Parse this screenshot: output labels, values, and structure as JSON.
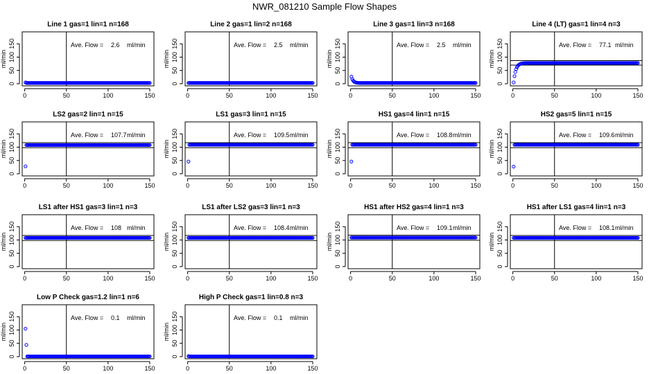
{
  "figure": {
    "title": "NWR_081210  Sample Flow Shapes"
  },
  "chart_data": [
    {
      "type": "scatter",
      "title": "Line 1 gas=1 lin=1 n=168",
      "annotation_label": "Ave. Flow =",
      "annotation_value": "2.6",
      "annotation_unit": "ml/min",
      "ylabel": "ml/min",
      "xlim": [
        -3,
        155
      ],
      "ylim": [
        -8,
        195
      ],
      "vline": 50,
      "hlines": [],
      "series": {
        "shape": "flat",
        "first": 5,
        "level": 3,
        "n": 150
      }
    },
    {
      "type": "scatter",
      "title": "Line 2 gas=1 lin=2 n=168",
      "annotation_label": "Ave. Flow =",
      "annotation_value": "2.5",
      "annotation_unit": "ml/min",
      "ylabel": "ml/min",
      "xlim": [
        -3,
        155
      ],
      "ylim": [
        -8,
        195
      ],
      "vline": 50,
      "hlines": [],
      "series": {
        "shape": "flat",
        "first": 3,
        "level": 3,
        "n": 150
      }
    },
    {
      "type": "scatter",
      "title": "Line 3 gas=1 lin=3 n=168",
      "annotation_label": "Ave. Flow =",
      "annotation_value": "2.5",
      "annotation_unit": "ml/min",
      "ylabel": "ml/min",
      "xlim": [
        -3,
        155
      ],
      "ylim": [
        -8,
        195
      ],
      "vline": 50,
      "hlines": [],
      "series": {
        "shape": "decay",
        "first": 27,
        "level": 3,
        "n": 150
      }
    },
    {
      "type": "scatter",
      "title": "Line 4 (LT) gas=1 lin=4 n=3",
      "annotation_label": "Ave. Flow =",
      "annotation_value": "77.1",
      "annotation_unit": "ml/min",
      "ylabel": "ml/min",
      "xlim": [
        -3,
        155
      ],
      "ylim": [
        -8,
        195
      ],
      "vline": 50,
      "hlines": [
        87,
        70
      ],
      "series": {
        "shape": "rise",
        "first": 5,
        "level": 78,
        "n": 150
      }
    },
    {
      "type": "scatter",
      "title": "LS2 gas=2 lin=1 n=15",
      "annotation_label": "Ave. Flow =",
      "annotation_value": "107.7",
      "annotation_unit": "ml/min",
      "ylabel": "ml/min",
      "xlim": [
        -3,
        155
      ],
      "ylim": [
        -8,
        195
      ],
      "vline": 50,
      "hlines": [
        117,
        98
      ],
      "series": {
        "shape": "flat",
        "first": 28,
        "level": 108,
        "n": 150
      }
    },
    {
      "type": "scatter",
      "title": "LS1 gas=3 lin=1 n=15",
      "annotation_label": "Ave. Flow =",
      "annotation_value": "109.5",
      "annotation_unit": "ml/min",
      "ylabel": "ml/min",
      "xlim": [
        -3,
        155
      ],
      "ylim": [
        -8,
        195
      ],
      "vline": 50,
      "hlines": [
        117,
        98
      ],
      "series": {
        "shape": "flat",
        "first": 46,
        "level": 109,
        "n": 150
      }
    },
    {
      "type": "scatter",
      "title": "HS1 gas=4 lin=1 n=15",
      "annotation_label": "Ave. Flow =",
      "annotation_value": "108.8",
      "annotation_unit": "ml/min",
      "ylabel": "ml/min",
      "xlim": [
        -3,
        155
      ],
      "ylim": [
        -8,
        195
      ],
      "vline": 50,
      "hlines": [
        117,
        98
      ],
      "series": {
        "shape": "flat",
        "first": 46,
        "level": 109,
        "n": 150
      }
    },
    {
      "type": "scatter",
      "title": "HS2 gas=5 lin=1 n=15",
      "annotation_label": "Ave. Flow =",
      "annotation_value": "109.6",
      "annotation_unit": "ml/min",
      "ylabel": "ml/min",
      "xlim": [
        -3,
        155
      ],
      "ylim": [
        -8,
        195
      ],
      "vline": 50,
      "hlines": [
        117,
        98
      ],
      "series": {
        "shape": "flat",
        "first": 27,
        "level": 109,
        "n": 150
      }
    },
    {
      "type": "scatter",
      "title": "LS1 after HS1 gas=3 lin=1 n=3",
      "annotation_label": "Ave. Flow =",
      "annotation_value": "108",
      "annotation_unit": "ml/min",
      "ylabel": "ml/min",
      "xlim": [
        -3,
        155
      ],
      "ylim": [
        -8,
        195
      ],
      "vline": 50,
      "hlines": [
        117,
        98
      ],
      "series": {
        "shape": "flat",
        "first": 108,
        "level": 108,
        "n": 150
      }
    },
    {
      "type": "scatter",
      "title": "LS1 after LS2 gas=3 lin=1 n=3",
      "annotation_label": "Ave. Flow =",
      "annotation_value": "108.4",
      "annotation_unit": "ml/min",
      "ylabel": "ml/min",
      "xlim": [
        -3,
        155
      ],
      "ylim": [
        -8,
        195
      ],
      "vline": 50,
      "hlines": [
        117,
        98
      ],
      "series": {
        "shape": "flat",
        "first": 108,
        "level": 108,
        "n": 150
      }
    },
    {
      "type": "scatter",
      "title": "HS1 after HS2 gas=4 lin=1 n=3",
      "annotation_label": "Ave. Flow =",
      "annotation_value": "109.1",
      "annotation_unit": "ml/min",
      "ylabel": "ml/min",
      "xlim": [
        -3,
        155
      ],
      "ylim": [
        -8,
        195
      ],
      "vline": 50,
      "hlines": [
        118,
        99
      ],
      "series": {
        "shape": "flat",
        "first": 109,
        "level": 109,
        "n": 150
      }
    },
    {
      "type": "scatter",
      "title": "HS1 after LS1 gas=4 lin=1 n=3",
      "annotation_label": "Ave. Flow =",
      "annotation_value": "108.1",
      "annotation_unit": "ml/min",
      "ylabel": "ml/min",
      "xlim": [
        -3,
        155
      ],
      "ylim": [
        -8,
        195
      ],
      "vline": 50,
      "hlines": [
        117,
        98
      ],
      "series": {
        "shape": "flat",
        "first": 108,
        "level": 108,
        "n": 150
      }
    },
    {
      "type": "scatter",
      "title": "Low P Check gas=1.2 lin=1 n=6",
      "annotation_label": "Ave. Flow =",
      "annotation_value": "0.1",
      "annotation_unit": "ml/min",
      "ylabel": "ml/min",
      "xlim": [
        -3,
        155
      ],
      "ylim": [
        -8,
        195
      ],
      "vline": 50,
      "hlines": [],
      "series": {
        "shape": "spikes",
        "first": 105,
        "second": 44,
        "level": 1,
        "n": 150
      }
    },
    {
      "type": "scatter",
      "title": "High P Check gas=1 lin=0.8 n=3",
      "annotation_label": "Ave. Flow =",
      "annotation_value": "0.1",
      "annotation_unit": "ml/min",
      "ylabel": "ml/min",
      "xlim": [
        -3,
        155
      ],
      "ylim": [
        -8,
        195
      ],
      "vline": 50,
      "hlines": [],
      "series": {
        "shape": "flat",
        "first": 2,
        "level": 1,
        "n": 150
      }
    }
  ],
  "axis": {
    "xticks": [
      0,
      50,
      100,
      150
    ],
    "yticks": [
      0,
      50,
      100,
      150
    ],
    "point_color": "#0000ff"
  }
}
